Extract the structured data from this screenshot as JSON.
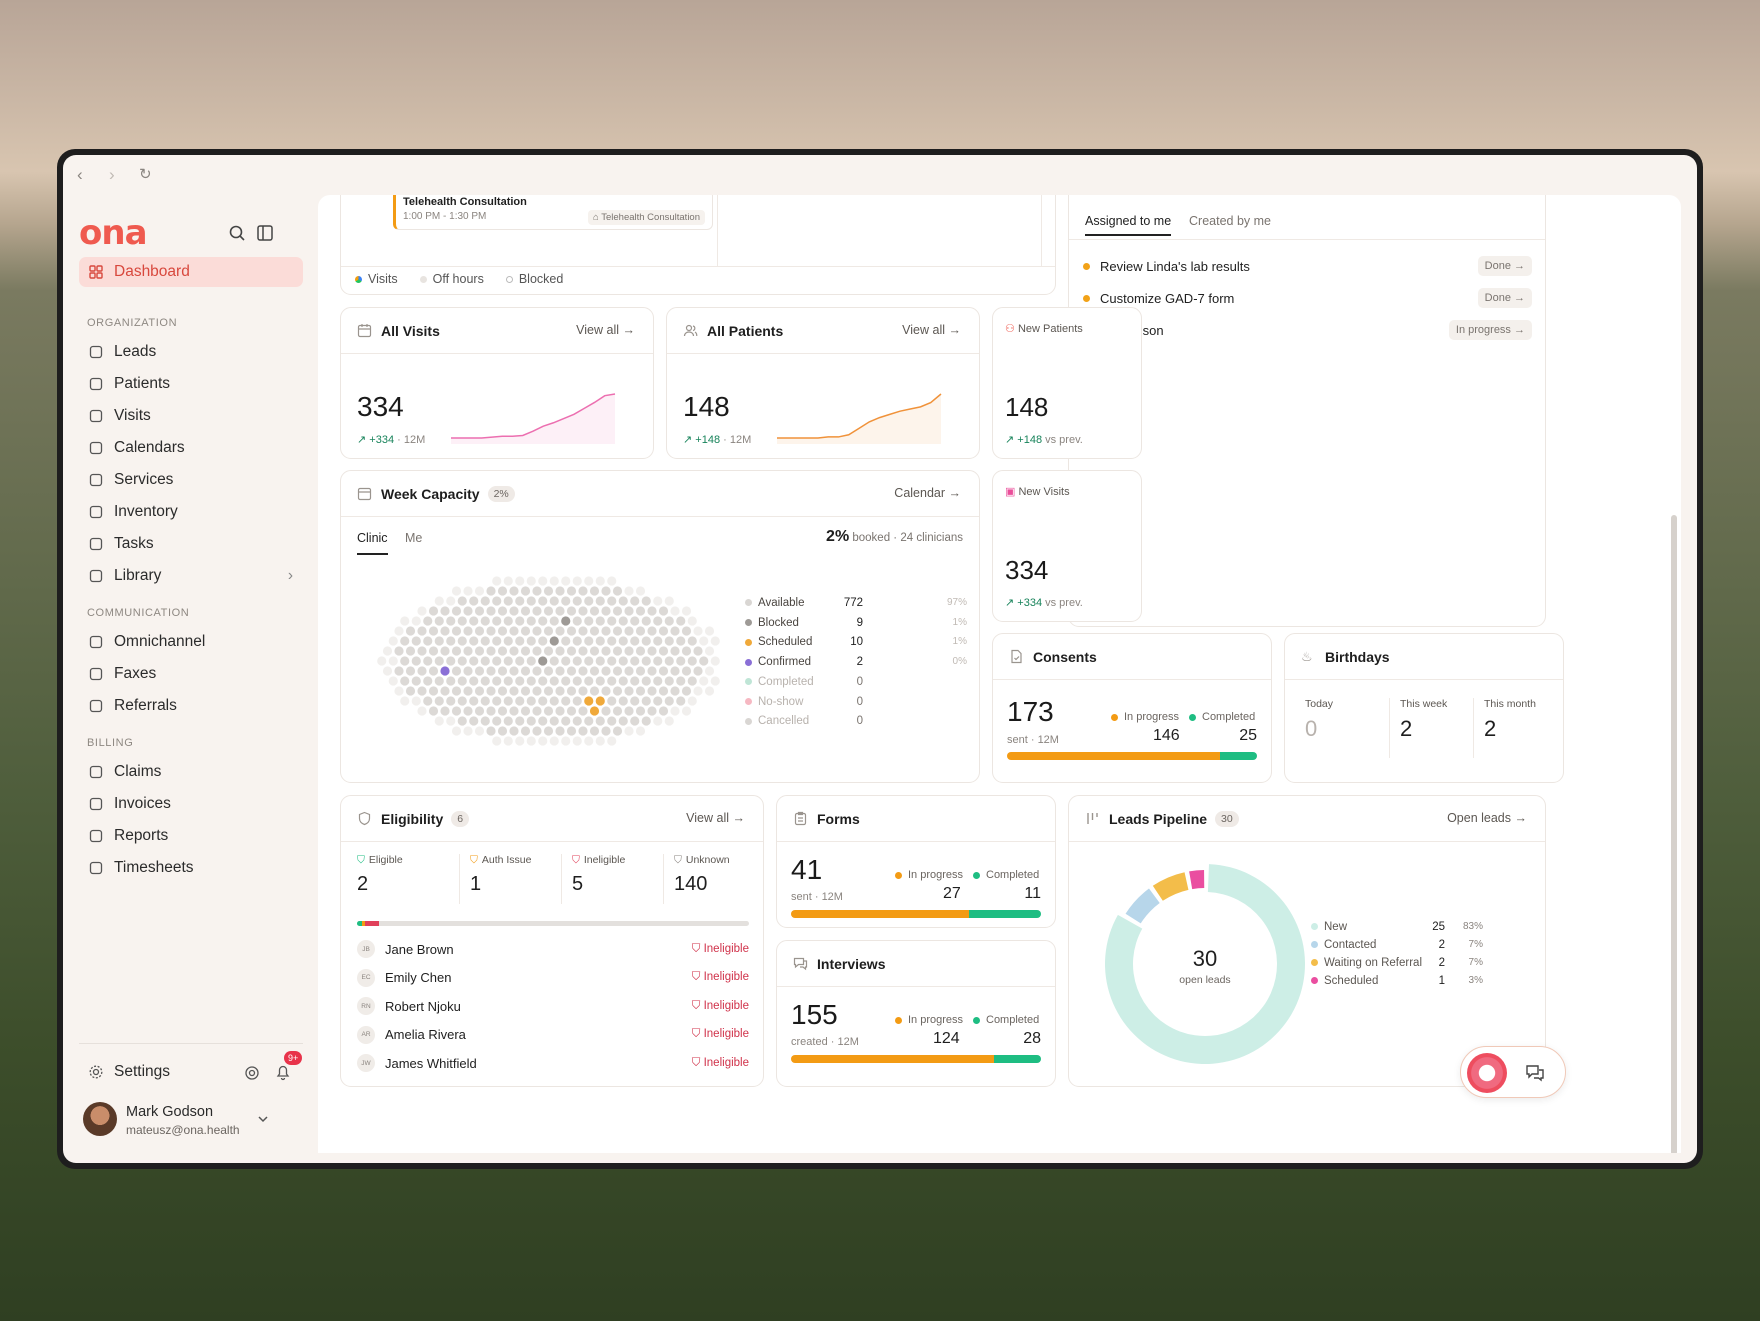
{
  "browser": {
    "back": "‹",
    "forward": "›",
    "reload": "↻"
  },
  "sidebar": {
    "logo": "ona",
    "dashboard": "Dashboard",
    "sections": {
      "organization": "ORGANIZATION",
      "communication": "COMMUNICATION",
      "billing": "BILLING"
    },
    "org_items": [
      "Leads",
      "Patients",
      "Visits",
      "Calendars",
      "Services",
      "Inventory",
      "Tasks",
      "Library"
    ],
    "comm_items": [
      "Omnichannel",
      "Faxes",
      "Referrals"
    ],
    "billing_items": [
      "Claims",
      "Invoices",
      "Reports",
      "Timesheets"
    ],
    "settings": "Settings",
    "notif_badge": "9+",
    "user": {
      "name": "Mark Godson",
      "email": "mateusz@ona.health"
    }
  },
  "calendar": {
    "event_title": "Telehealth Consultation",
    "event_time": "1:00 PM - 1:30 PM",
    "event_tag": "Telehealth Consultation",
    "legend": [
      "Visits",
      "Off hours",
      "Blocked"
    ]
  },
  "tasks": {
    "tabs": [
      "Assigned to me",
      "Created by me"
    ],
    "items": [
      {
        "label": "Review Linda's lab results",
        "status": "Done",
        "color": "#f2a218"
      },
      {
        "label": "Customize GAD-7 form",
        "status": "Done",
        "color": "#f2a218"
      },
      {
        "label": "Call Allison",
        "status": "In progress",
        "color": "#3b82d6"
      }
    ]
  },
  "all_visits": {
    "title": "All Visits",
    "view": "View all →",
    "value": "334",
    "delta": "+334",
    "period": "· 12M",
    "series": [
      10,
      10,
      10,
      10,
      11,
      12,
      12,
      13,
      18,
      24,
      28,
      33,
      38,
      45,
      52,
      60,
      62
    ]
  },
  "all_patients": {
    "title": "All Patients",
    "view": "View all →",
    "value": "148",
    "delta": "+148",
    "period": "· 12M",
    "series": [
      5,
      5,
      5,
      5,
      5,
      6,
      6,
      8,
      14,
      20,
      24,
      27,
      30,
      32,
      34,
      38,
      46
    ]
  },
  "new_patients": {
    "title": "New Patients",
    "value": "148",
    "delta": "+148",
    "suffix": "vs prev."
  },
  "new_visits": {
    "title": "New Visits",
    "value": "334",
    "delta": "+334",
    "suffix": "vs prev."
  },
  "week_capacity": {
    "title": "Week Capacity",
    "badge": "2%",
    "link": "Calendar →",
    "tabs": [
      "Clinic",
      "Me"
    ],
    "booked_pct": "2%",
    "booked_label": "booked",
    "clinicians": "24 clinicians",
    "legend": [
      {
        "label": "Available",
        "count": "772",
        "pct": "97%",
        "color": "#d9d6d3"
      },
      {
        "label": "Blocked",
        "count": "9",
        "pct": "1%",
        "color": "#9e9a96"
      },
      {
        "label": "Scheduled",
        "count": "10",
        "pct": "1%",
        "color": "#f0a93a"
      },
      {
        "label": "Confirmed",
        "count": "2",
        "pct": "0%",
        "color": "#8a6fd6"
      },
      {
        "label": "Completed",
        "count": "0",
        "pct": "",
        "color": "#bfe5d6"
      },
      {
        "label": "No-show",
        "count": "0",
        "pct": "",
        "color": "#f6b8c2"
      },
      {
        "label": "Cancelled",
        "count": "0",
        "pct": "",
        "color": "#d9d6d3"
      }
    ]
  },
  "consents": {
    "title": "Consents",
    "value": "173",
    "sub": "sent · 12M",
    "in_progress_label": "In progress",
    "in_progress": "146",
    "completed_label": "Completed",
    "completed": "25",
    "progress": 0.85
  },
  "birthdays": {
    "title": "Birthdays",
    "cols": [
      {
        "label": "Today",
        "value": "0"
      },
      {
        "label": "This week",
        "value": "2"
      },
      {
        "label": "This month",
        "value": "2"
      }
    ]
  },
  "eligibility": {
    "title": "Eligibility",
    "badge": "6",
    "view": "View all →",
    "stats": [
      {
        "label": "Eligible",
        "value": "2",
        "color": "#1ebd82"
      },
      {
        "label": "Auth Issue",
        "value": "1",
        "color": "#f39b14"
      },
      {
        "label": "Ineligible",
        "value": "5",
        "color": "#e0405a"
      },
      {
        "label": "Unknown",
        "value": "140",
        "color": "#8a847f"
      }
    ],
    "rows": [
      {
        "initials": "JB",
        "name": "Jane Brown",
        "status": "Ineligible"
      },
      {
        "initials": "EC",
        "name": "Emily Chen",
        "status": "Ineligible"
      },
      {
        "initials": "RN",
        "name": "Robert Njoku",
        "status": "Ineligible"
      },
      {
        "initials": "AR",
        "name": "Amelia Rivera",
        "status": "Ineligible"
      },
      {
        "initials": "JW",
        "name": "James Whitfield",
        "status": "Ineligible"
      }
    ]
  },
  "forms": {
    "title": "Forms",
    "value": "41",
    "sub": "sent · 12M",
    "in_progress_label": "In progress",
    "in_progress": "27",
    "completed_label": "Completed",
    "completed": "11",
    "progress": 0.71
  },
  "interviews": {
    "title": "Interviews",
    "value": "155",
    "sub": "created · 12M",
    "in_progress_label": "In progress",
    "in_progress": "124",
    "completed_label": "Completed",
    "completed": "28",
    "progress": 0.81
  },
  "leads": {
    "title": "Leads Pipeline",
    "badge": "30",
    "link": "Open leads →",
    "center_value": "30",
    "center_label": "open leads",
    "legend": [
      {
        "label": "New",
        "count": "25",
        "pct": "83%",
        "color": "#cdeee6"
      },
      {
        "label": "Contacted",
        "count": "2",
        "pct": "7%",
        "color": "#b7d6ea"
      },
      {
        "label": "Waiting on Referral",
        "count": "2",
        "pct": "7%",
        "color": "#f3bd4a"
      },
      {
        "label": "Scheduled",
        "count": "1",
        "pct": "3%",
        "color": "#ea4ea0"
      }
    ]
  }
}
